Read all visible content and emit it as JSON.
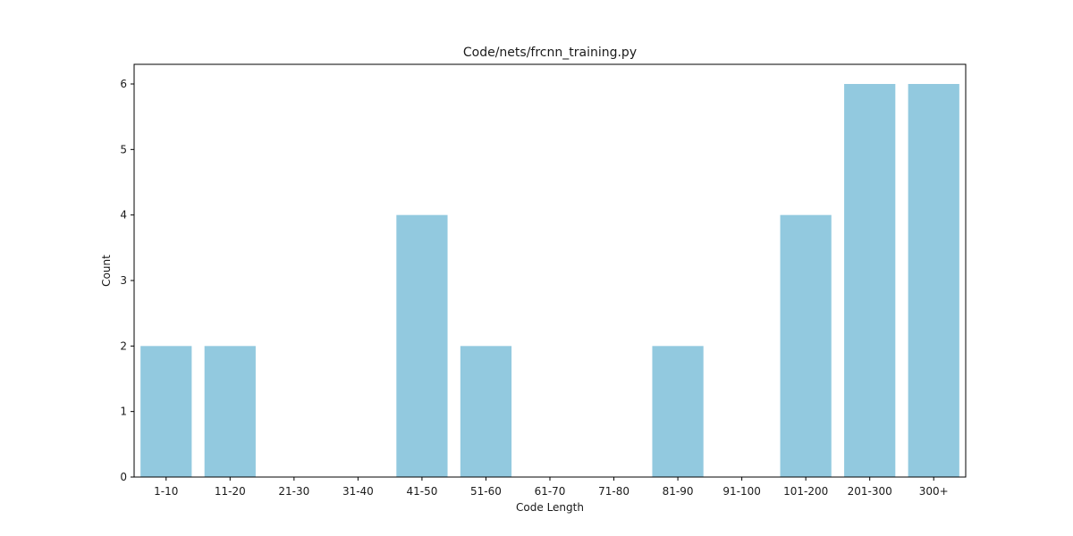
{
  "chart_data": {
    "type": "bar",
    "title": "Code/nets/frcnn_training.py",
    "xlabel": "Code Length",
    "ylabel": "Count",
    "categories": [
      "1-10",
      "11-20",
      "21-30",
      "31-40",
      "41-50",
      "51-60",
      "61-70",
      "71-80",
      "81-90",
      "91-100",
      "101-200",
      "201-300",
      "300+"
    ],
    "values": [
      2,
      2,
      0,
      0,
      4,
      2,
      0,
      0,
      2,
      0,
      4,
      6,
      6
    ],
    "ylim": [
      0,
      6.3
    ],
    "yticks": [
      0,
      1,
      2,
      3,
      4,
      5,
      6
    ],
    "bar_color": "#92c9df",
    "grid": false,
    "legend": "none"
  }
}
